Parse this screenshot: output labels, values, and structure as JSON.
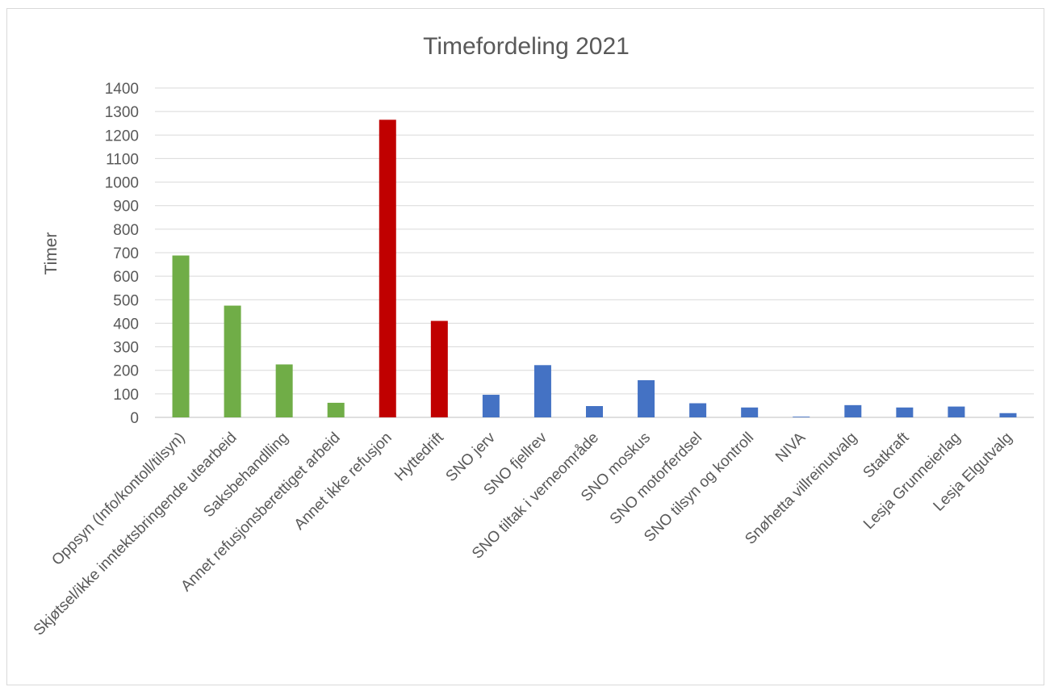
{
  "chart_data": {
    "type": "bar",
    "title": "Timefordeling 2021",
    "xlabel": "",
    "ylabel": "Timer",
    "ylim": [
      0,
      1400
    ],
    "ytick_step": 100,
    "grid": true,
    "legend": "none",
    "categories": [
      "Oppsyn (Info/kontoll/tilsyn)",
      "Skjøtsel/ikke inntektsbringende utearbeid",
      "Saksbehandlling",
      "Annet refusjonsberettiget arbeid",
      "Annet ikke refusjon",
      "Hyttedrift",
      "SNO jerv",
      "SNO fjellrev",
      "SNO tiltak i verneområde",
      "SNO moskus",
      "SNO motorferdsel",
      "SNO tilsyn og kontroll",
      "NIVA",
      "Snøhetta villreinutvalg",
      "Statkraft",
      "Lesja Grunneierlag",
      "Lesja Elgutvalg"
    ],
    "values": [
      688,
      475,
      225,
      62,
      1265,
      410,
      96,
      222,
      48,
      158,
      60,
      42,
      3,
      52,
      42,
      46,
      18
    ],
    "bar_colors": [
      "#70ad47",
      "#70ad47",
      "#70ad47",
      "#70ad47",
      "#c00000",
      "#c00000",
      "#4472c4",
      "#4472c4",
      "#4472c4",
      "#4472c4",
      "#4472c4",
      "#4472c4",
      "#4472c4",
      "#4472c4",
      "#4472c4",
      "#4472c4",
      "#4472c4"
    ]
  }
}
